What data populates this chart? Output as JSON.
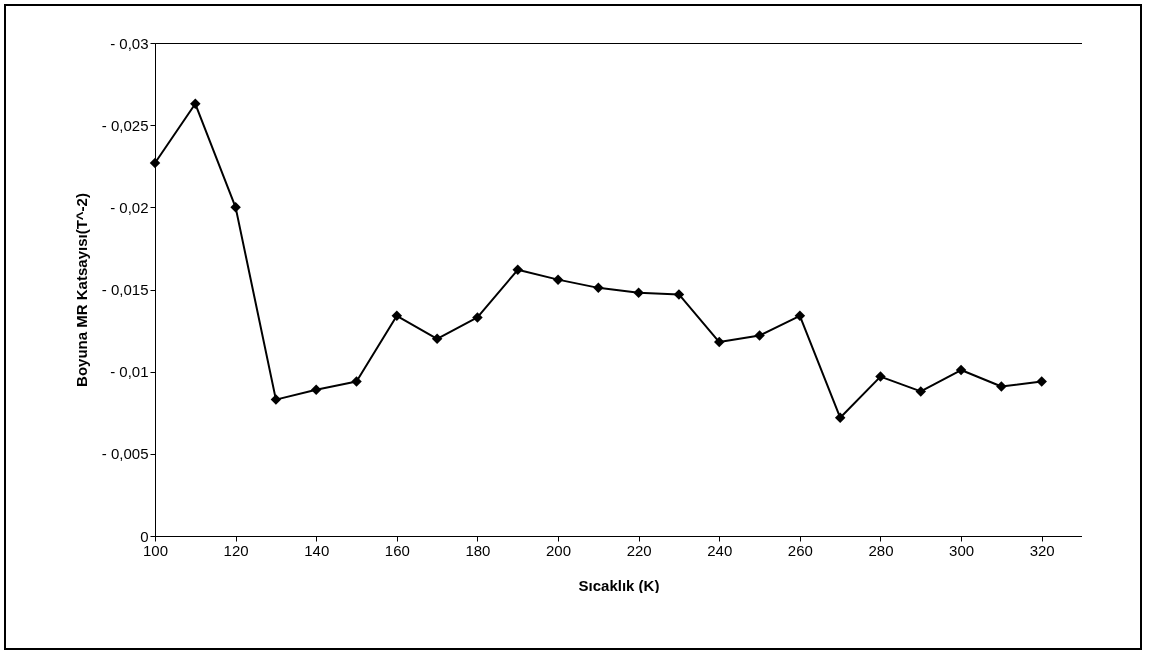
{
  "chart_data": {
    "type": "line",
    "xlabel": "Sıcaklık (K)",
    "ylabel": "Boyuna MR Katsayısı(T^-2)",
    "x": [
      100,
      110,
      120,
      130,
      140,
      150,
      160,
      170,
      180,
      190,
      200,
      210,
      220,
      230,
      240,
      250,
      260,
      270,
      280,
      290,
      300,
      310,
      320
    ],
    "series": [
      {
        "color": "#000000",
        "values": [
          -0.0227,
          -0.0263,
          -0.02,
          -0.0083,
          -0.0089,
          -0.0094,
          -0.0134,
          -0.012,
          -0.0133,
          -0.0162,
          -0.0156,
          -0.0151,
          -0.0148,
          -0.0147,
          -0.0118,
          -0.0122,
          -0.0134,
          -0.0072,
          -0.0097,
          -0.0088,
          -0.0101,
          -0.0091,
          -0.0094
        ]
      }
    ],
    "xlim": [
      100,
      330
    ],
    "xticks": [
      100,
      120,
      140,
      160,
      180,
      200,
      220,
      240,
      260,
      280,
      300,
      320
    ],
    "ylim": [
      0,
      -0.03
    ],
    "yticks": [
      0,
      {
        "value": -0.005,
        "label": "- 0,005"
      },
      {
        "value": -0.01,
        "label": "- 0,01"
      },
      {
        "value": -0.015,
        "label": "- 0,015"
      },
      {
        "value": -0.02,
        "label": "- 0,02"
      },
      {
        "value": -0.025,
        "label": "- 0,025"
      },
      {
        "value": -0.03,
        "label": "- 0,03"
      }
    ],
    "grid": false,
    "legend": false,
    "marker": "diamond",
    "line_style": "solid"
  }
}
